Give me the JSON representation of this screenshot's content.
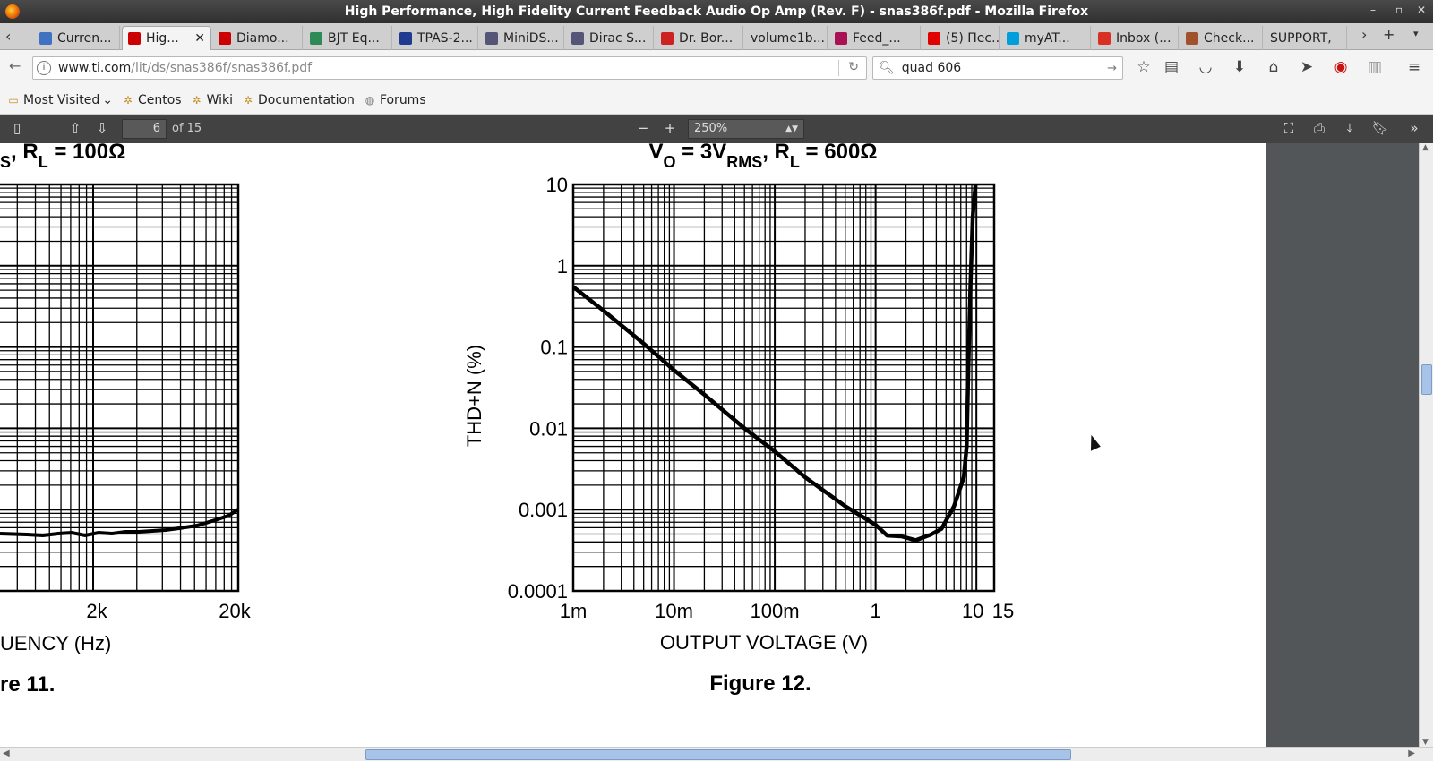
{
  "window": {
    "title": "High Performance, High Fidelity Current Feedback Audio Op Amp (Rev. F) - snas386f.pdf - Mozilla Firefox"
  },
  "tabs": [
    {
      "label": "Curren...",
      "icon_color": "#3f73c2",
      "icon": "globe-icon"
    },
    {
      "label": "Hig...",
      "icon_color": "#cc0000",
      "icon": "ti-logo-icon",
      "active": true
    },
    {
      "label": "Diamo...",
      "icon_color": "#cc0000",
      "icon": "ti-logo-icon"
    },
    {
      "label": "BJT Eq...",
      "icon_color": "#2e8b57",
      "icon": "tree-icon"
    },
    {
      "label": "TPAS-2...",
      "icon_color": "#1f3b8f",
      "icon": "ieee-icon"
    },
    {
      "label": "MiniDS...",
      "icon_color": "#555577",
      "icon": "dsp-icon"
    },
    {
      "label": "Dirac S...",
      "icon_color": "#555577",
      "icon": "dsp-icon"
    },
    {
      "label": "Dr. Bor...",
      "icon_color": "#cc2222",
      "icon": "pen-icon"
    },
    {
      "label": "volume1b...",
      "icon_color": "",
      "icon": ""
    },
    {
      "label": "Feed_...",
      "icon_color": "#aa1155",
      "icon": "feather-icon"
    },
    {
      "label": "(5) Пес...",
      "icon_color": "#e00000",
      "icon": "youtube-icon"
    },
    {
      "label": "myAT...",
      "icon_color": "#009fdb",
      "icon": "att-icon"
    },
    {
      "label": "Inbox (...",
      "icon_color": "#d93025",
      "icon": "gmail-icon"
    },
    {
      "label": "Check...",
      "icon_color": "#a0522d",
      "icon": "tv-icon"
    },
    {
      "label": "SUPPORT,",
      "icon_color": "",
      "icon": ""
    }
  ],
  "nav": {
    "url_host": "www.ti.com",
    "url_path": "/lit/ds/snas386f/snas386f.pdf",
    "search_value": "quad 606"
  },
  "bookmarks": [
    {
      "label": "Most Visited",
      "icon": "folder-icon",
      "dropdown": true
    },
    {
      "label": "Centos",
      "icon": "centos-icon"
    },
    {
      "label": "Wiki",
      "icon": "wiki-icon"
    },
    {
      "label": "Documentation",
      "icon": "doc-icon"
    },
    {
      "label": "Forums",
      "icon": "globe-icon"
    }
  ],
  "pdf_toolbar": {
    "page_number": "6",
    "page_count": "of 15",
    "zoom": "250%"
  },
  "left_chart": {
    "title_fragment_a": "S",
    "title_fragment_b": ", R",
    "title_sub_l": "L",
    "title_fragment_c": " = 100Ω",
    "x_ticks": [
      "2k",
      "20k"
    ],
    "xlabel_fragment": "UENCY (Hz)",
    "caption_fragment": "re 11."
  },
  "chart_data": {
    "type": "line",
    "title_parts": {
      "v": "V",
      "v_sub": "O",
      "mid": " = 3V",
      "mid_sub": "RMS",
      "tail": ", R",
      "tail_sub": "L",
      "end": " = 600Ω"
    },
    "xlabel": "OUTPUT VOLTAGE (V)",
    "ylabel": "THD+N (%)",
    "x_scale": "log",
    "y_scale": "log",
    "xlim": [
      0.001,
      15
    ],
    "ylim": [
      0.0001,
      10
    ],
    "x_tick_labels": [
      "1m",
      "10m",
      "100m",
      "1",
      "10",
      "15"
    ],
    "y_tick_labels": [
      "10",
      "1",
      "0.1",
      "0.01",
      "0.001",
      "0.0001"
    ],
    "grid": true,
    "caption": "Figure 12.",
    "series": [
      {
        "x": [
          0.001,
          0.002,
          0.005,
          0.01,
          0.02,
          0.05,
          0.1,
          0.2,
          0.5,
          1.0,
          1.3,
          1.8,
          2.5,
          3.5,
          4.5,
          6.0,
          7.5,
          8.0,
          8.3,
          8.7,
          9.2,
          9.8
        ],
        "y": [
          0.55,
          0.28,
          0.11,
          0.052,
          0.026,
          0.01,
          0.0052,
          0.0025,
          0.0011,
          0.00065,
          0.00048,
          0.00047,
          0.00042,
          0.00049,
          0.00058,
          0.0011,
          0.0025,
          0.006,
          0.05,
          0.5,
          4.0,
          10.0
        ]
      }
    ]
  }
}
